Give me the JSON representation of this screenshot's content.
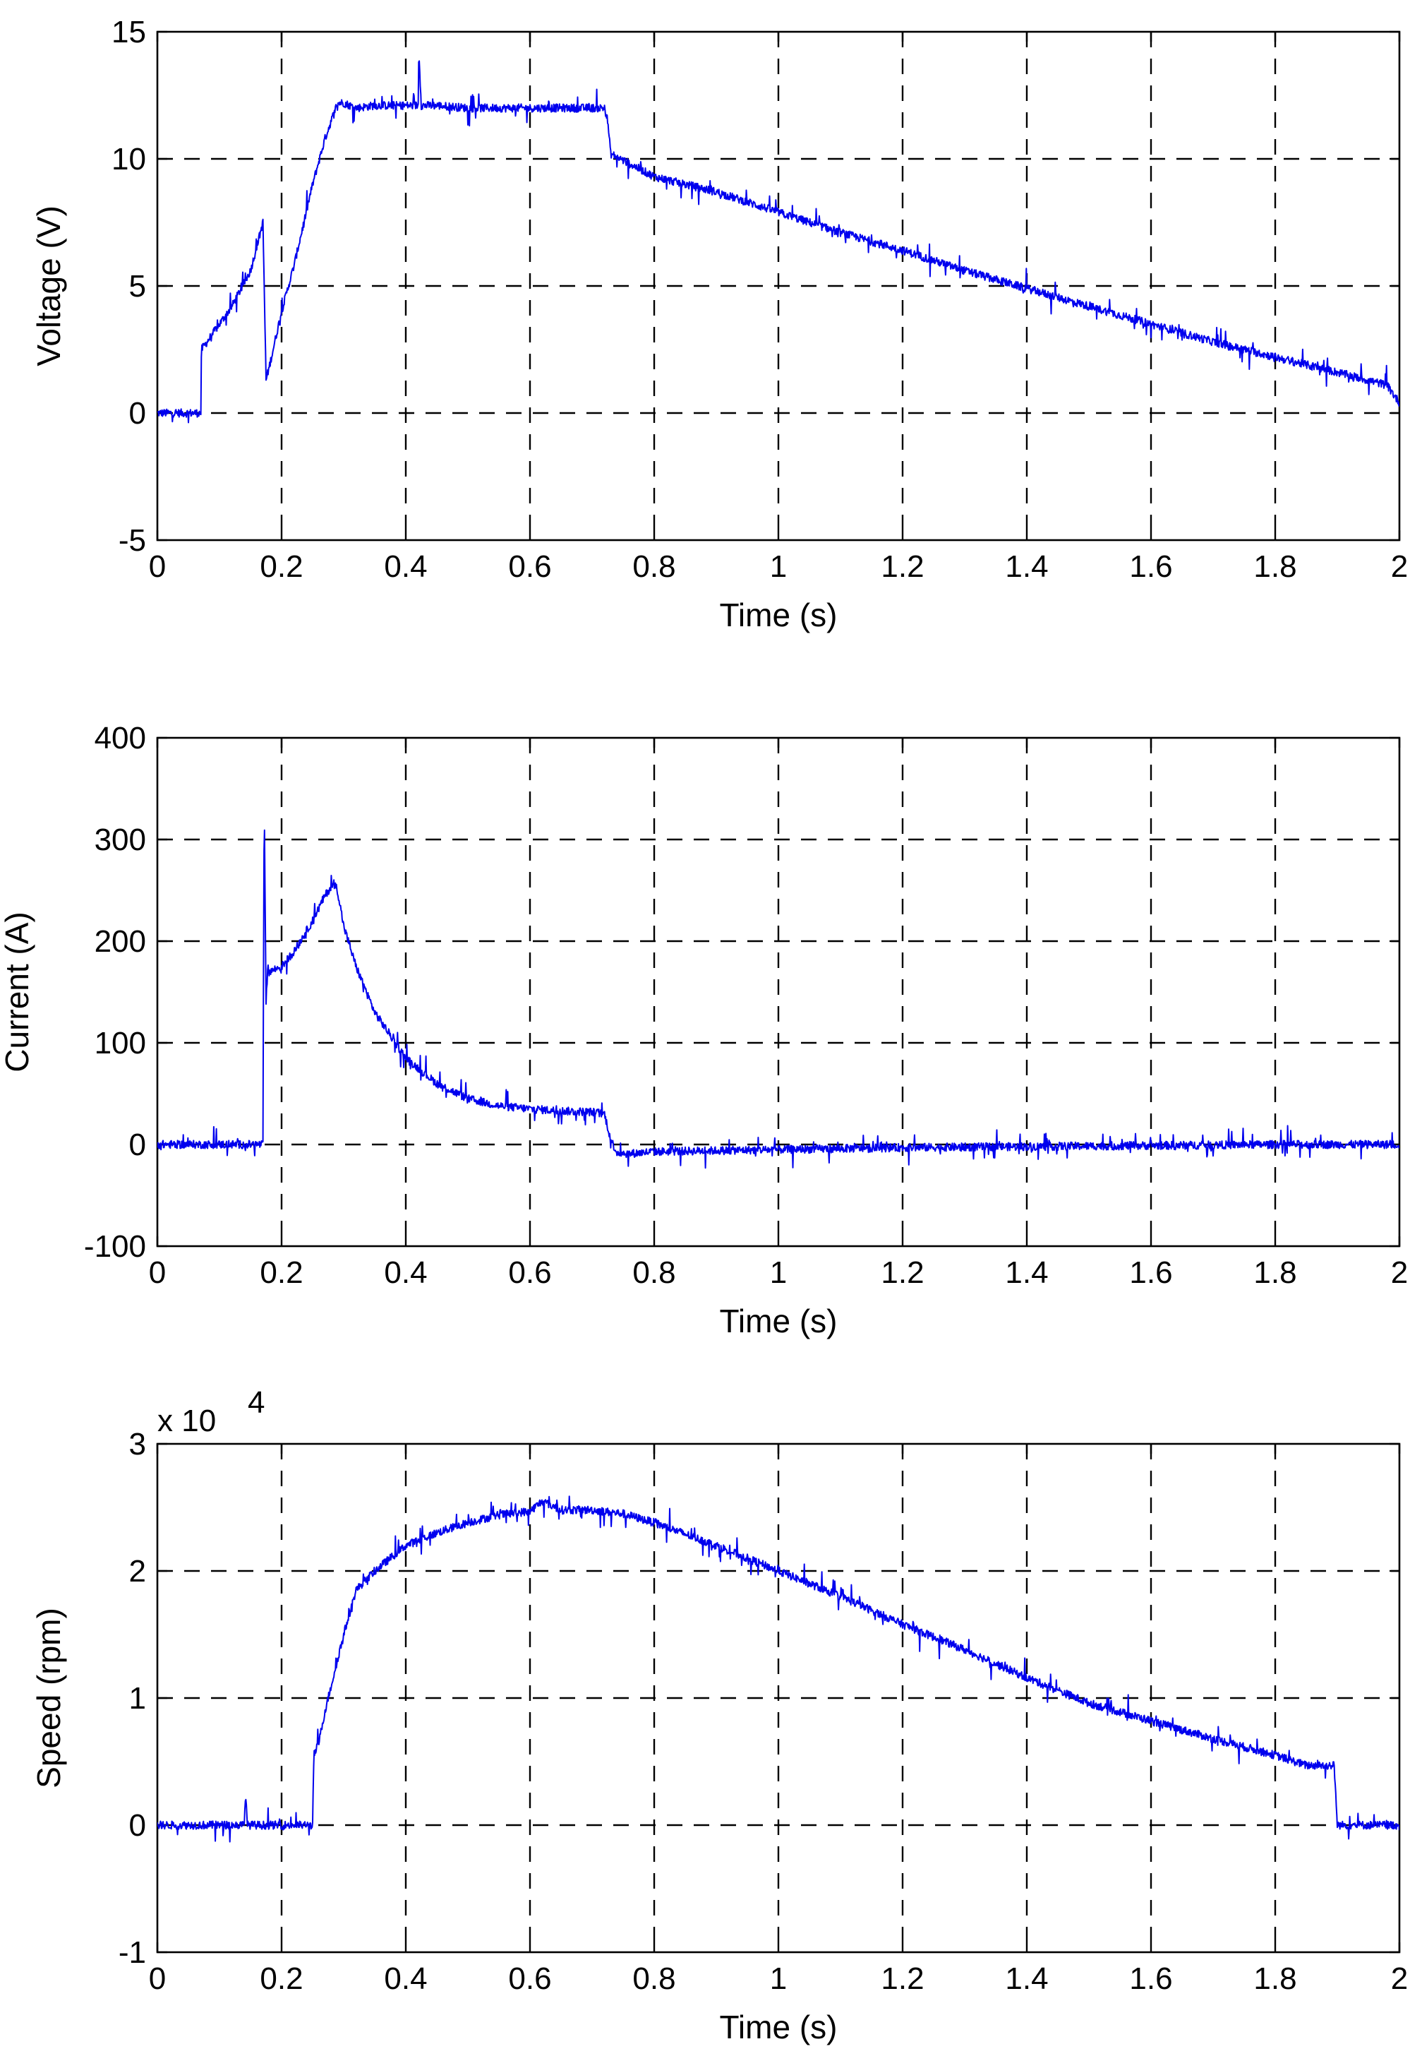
{
  "chart_data": [
    {
      "type": "line",
      "title": "",
      "xlabel": "Time (s)",
      "ylabel": "Voltage (V)",
      "xlim": [
        0,
        2
      ],
      "ylim": [
        -5,
        15
      ],
      "x_ticks": [
        0,
        0.2,
        0.4,
        0.6,
        0.8,
        1,
        1.2,
        1.4,
        1.6,
        1.8,
        2
      ],
      "y_ticks": [
        -5,
        0,
        5,
        10,
        15
      ],
      "x_tick_labels": [
        "0",
        "0.2",
        "0.4",
        "0.6",
        "0.8",
        "1",
        "1.2",
        "1.4",
        "1.6",
        "1.8",
        "2"
      ],
      "y_tick_labels": [
        "-5",
        "0",
        "5",
        "10",
        "15"
      ],
      "exponent_label": "",
      "grid": true,
      "color": "#0000ee",
      "series": [
        {
          "x": [
            0,
            0.07,
            0.071,
            0.08,
            0.1,
            0.12,
            0.15,
            0.17,
            0.175,
            0.18,
            0.2,
            0.22,
            0.25,
            0.27,
            0.29,
            0.3,
            0.32,
            0.35,
            0.42,
            0.421,
            0.425,
            0.45,
            0.5,
            0.6,
            0.7,
            0.72,
            0.725,
            0.73,
            0.8,
            0.9,
            1.0,
            1.1,
            1.2,
            1.3,
            1.4,
            1.5,
            1.6,
            1.7,
            1.8,
            1.9,
            1.98,
            2.0
          ],
          "y": [
            0,
            0,
            2.5,
            2.8,
            3.5,
            4.2,
            5.6,
            7.5,
            1.3,
            1.8,
            4.0,
            5.8,
            9.0,
            10.8,
            12.2,
            12.2,
            12.0,
            12.1,
            12.1,
            14.3,
            12.1,
            12.1,
            12.0,
            12.0,
            12.0,
            12.0,
            11.5,
            10.2,
            9.3,
            8.7,
            7.9,
            7.1,
            6.4,
            5.6,
            4.9,
            4.2,
            3.5,
            2.8,
            2.2,
            1.6,
            1.1,
            0.4
          ]
        }
      ]
    },
    {
      "type": "line",
      "title": "",
      "xlabel": "Time (s)",
      "ylabel": "Current (A)",
      "xlim": [
        0,
        2
      ],
      "ylim": [
        -100,
        400
      ],
      "x_ticks": [
        0,
        0.2,
        0.4,
        0.6,
        0.8,
        1,
        1.2,
        1.4,
        1.6,
        1.8,
        2
      ],
      "y_ticks": [
        -100,
        0,
        100,
        200,
        300,
        400
      ],
      "x_tick_labels": [
        "0",
        "0.2",
        "0.4",
        "0.6",
        "0.8",
        "1",
        "1.2",
        "1.4",
        "1.6",
        "1.8",
        "2"
      ],
      "y_tick_labels": [
        "-100",
        "0",
        "100",
        "200",
        "300",
        "400"
      ],
      "exponent_label": "",
      "grid": true,
      "color": "#0000ee",
      "series": [
        {
          "x": [
            0,
            0.17,
            0.172,
            0.175,
            0.178,
            0.18,
            0.2,
            0.22,
            0.25,
            0.27,
            0.285,
            0.29,
            0.3,
            0.32,
            0.35,
            0.4,
            0.45,
            0.5,
            0.55,
            0.6,
            0.65,
            0.7,
            0.72,
            0.73,
            0.74,
            0.76,
            0.8,
            1.0,
            1.2,
            1.4,
            1.6,
            1.8,
            2.0
          ],
          "y": [
            0,
            0,
            345,
            140,
            175,
            170,
            175,
            190,
            220,
            245,
            258,
            250,
            215,
            175,
            130,
            85,
            60,
            45,
            38,
            35,
            33,
            32,
            30,
            5,
            -8,
            -9,
            -7,
            -5,
            -3,
            -2,
            -1,
            0,
            0
          ]
        }
      ]
    },
    {
      "type": "line",
      "title": "",
      "xlabel": "Time (s)",
      "ylabel": "Speed (rpm)",
      "xlim": [
        0,
        2
      ],
      "ylim": [
        -1,
        3
      ],
      "x_ticks": [
        0,
        0.2,
        0.4,
        0.6,
        0.8,
        1,
        1.2,
        1.4,
        1.6,
        1.8,
        2
      ],
      "y_ticks": [
        -1,
        0,
        1,
        2,
        3
      ],
      "x_tick_labels": [
        "0",
        "0.2",
        "0.4",
        "0.6",
        "0.8",
        "1",
        "1.2",
        "1.4",
        "1.6",
        "1.8",
        "2"
      ],
      "y_tick_labels": [
        "-1",
        "0",
        "1",
        "2",
        "3"
      ],
      "exponent_label": "x 10",
      "exponent_sup": "4",
      "grid": true,
      "color": "#0000ee",
      "series": [
        {
          "x": [
            0,
            0.08,
            0.14,
            0.142,
            0.145,
            0.2,
            0.25,
            0.252,
            0.26,
            0.27,
            0.28,
            0.3,
            0.32,
            0.35,
            0.4,
            0.45,
            0.5,
            0.55,
            0.6,
            0.62,
            0.65,
            0.7,
            0.75,
            0.8,
            0.9,
            1.0,
            1.1,
            1.2,
            1.3,
            1.4,
            1.5,
            1.6,
            1.7,
            1.8,
            1.85,
            1.895,
            1.9,
            1.95,
            2.0
          ],
          "y": [
            0,
            0,
            0,
            0.28,
            0,
            0,
            0,
            0.55,
            0.65,
            0.9,
            1.1,
            1.5,
            1.85,
            2.0,
            2.2,
            2.3,
            2.38,
            2.44,
            2.47,
            2.55,
            2.48,
            2.48,
            2.45,
            2.38,
            2.2,
            2.0,
            1.8,
            1.58,
            1.38,
            1.16,
            0.96,
            0.82,
            0.68,
            0.55,
            0.47,
            0.47,
            0,
            0,
            0
          ]
        }
      ]
    }
  ]
}
